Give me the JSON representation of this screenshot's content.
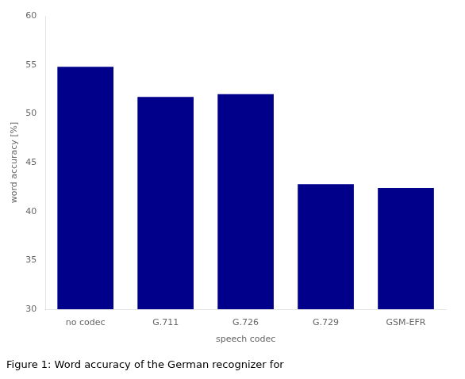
{
  "chart_data": {
    "type": "bar",
    "categories": [
      "no codec",
      "G.711",
      "G.726",
      "G.729",
      "GSM-EFR"
    ],
    "values": [
      54.8,
      51.7,
      52.0,
      42.8,
      42.4
    ],
    "color": "#00008B",
    "xlabel": "speech codec",
    "ylabel": "word accuracy [%]",
    "ylim": [
      30,
      60
    ],
    "yticks": [
      30,
      35,
      40,
      45,
      50,
      55,
      60
    ],
    "grid": false,
    "annotation": "Figure 1: Word accuracy of the German recognizer for"
  }
}
